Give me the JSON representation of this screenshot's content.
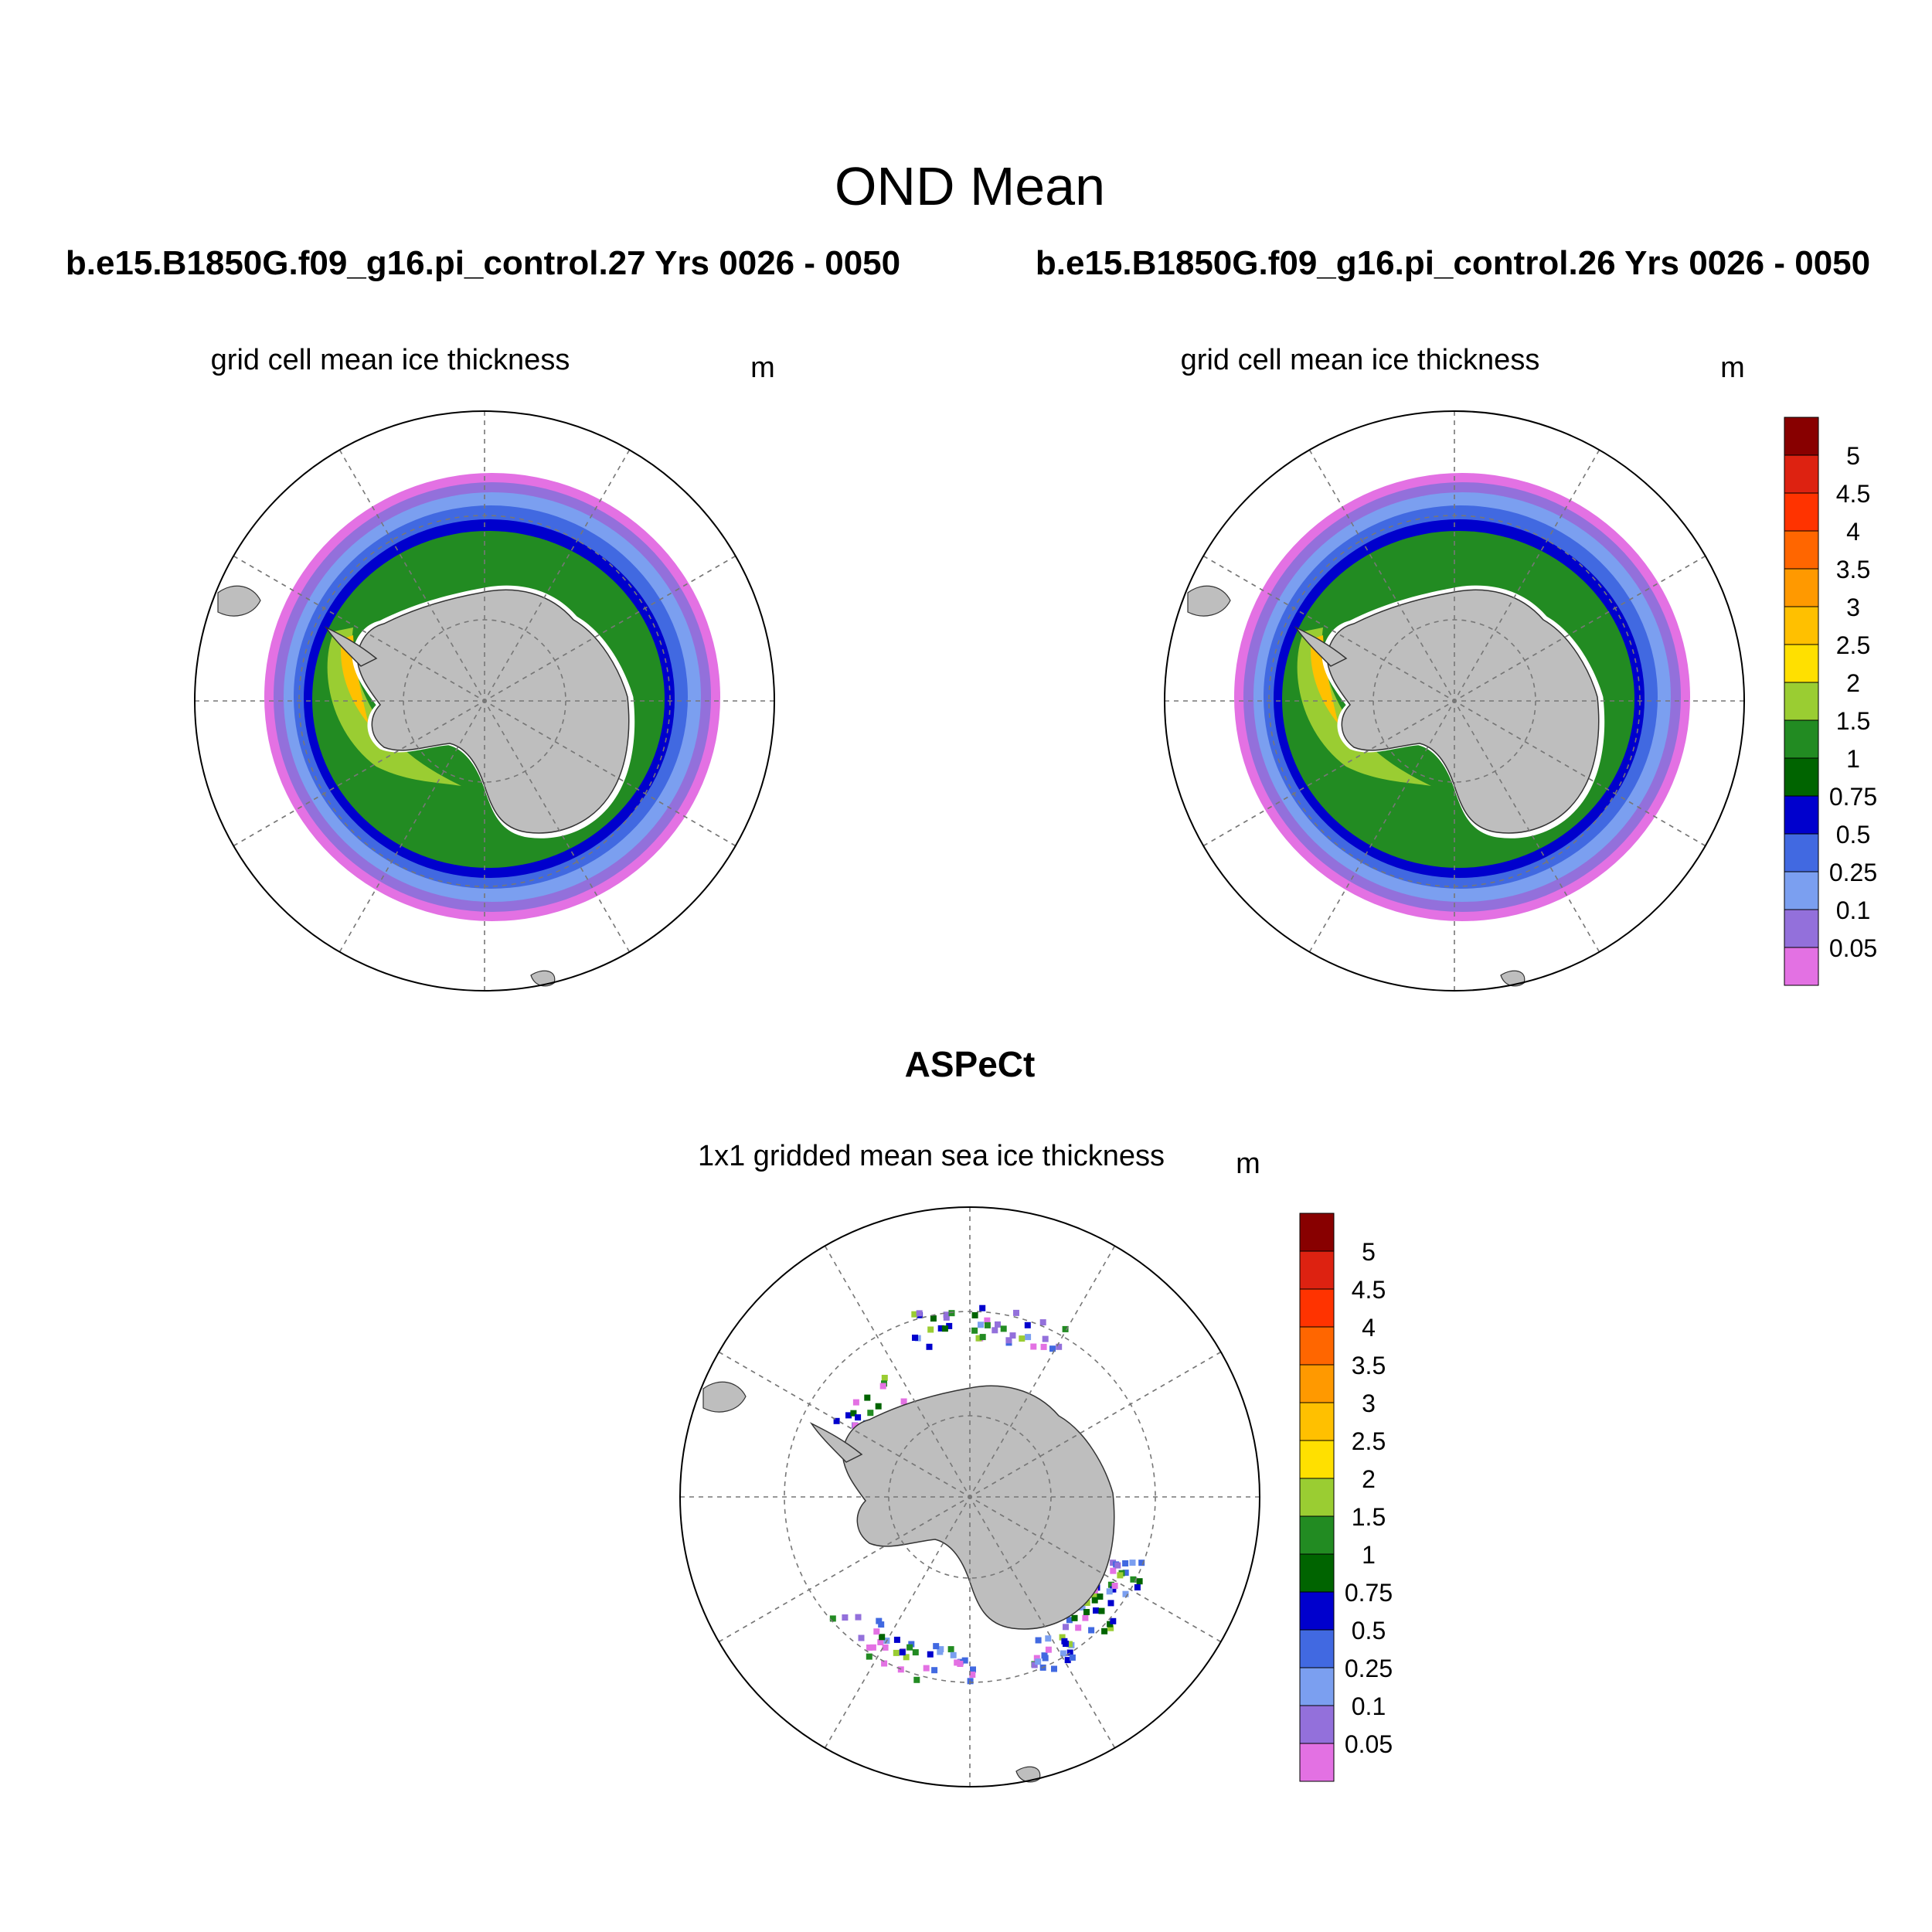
{
  "figure": {
    "title": "OND Mean",
    "left_case": "b.e15.B1850G.f09_g16.pi_control.27  Yrs 0026 - 0050",
    "right_case": "b.e15.B1850G.f09_g16.pi_control.26  Yrs 0026 - 0050",
    "bottom_heading": "ASPeCt"
  },
  "panels": {
    "left": {
      "subtitle": "grid cell mean ice thickness",
      "units": "m"
    },
    "right": {
      "subtitle": "grid cell mean ice thickness",
      "units": "m"
    },
    "bottom": {
      "subtitle": "1x1 gridded mean sea ice thickness",
      "units": "m"
    }
  },
  "colorbar": {
    "levels": [
      "0.05",
      "0.1",
      "0.25",
      "0.5",
      "0.75",
      "1",
      "1.5",
      "2",
      "2.5",
      "3",
      "3.5",
      "4",
      "4.5",
      "5"
    ],
    "colors": [
      "#e371e3",
      "#9370db",
      "#7b9ff0",
      "#4169e1",
      "#0000cd",
      "#006400",
      "#228b22",
      "#9acd32",
      "#ffe000",
      "#ffc000",
      "#ff9900",
      "#ff6600",
      "#ff3300",
      "#dd2211",
      "#880000"
    ]
  },
  "map_colors": {
    "land": "#bebebe",
    "coast": "#333333",
    "grid": "#777777"
  }
}
